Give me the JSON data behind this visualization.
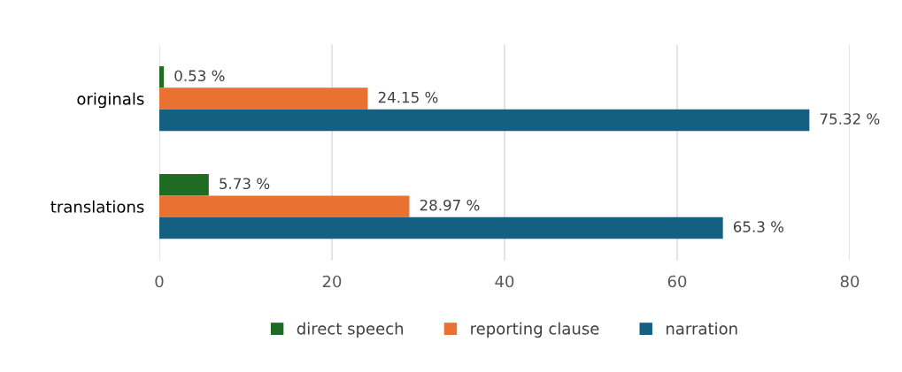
{
  "chart_data": {
    "type": "bar",
    "orientation": "horizontal",
    "categories": [
      "originals",
      "translations"
    ],
    "series": [
      {
        "name": "direct speech",
        "color": "#1e6b24",
        "values": [
          0.53,
          5.73
        ],
        "value_labels": [
          "0.53 %",
          "5.73 %"
        ]
      },
      {
        "name": "reporting clause",
        "color": "#e97132",
        "values": [
          24.15,
          28.97
        ],
        "value_labels": [
          "24.15 %",
          "28.97 %"
        ]
      },
      {
        "name": "narration",
        "color": "#156082",
        "values": [
          75.32,
          65.3
        ],
        "value_labels": [
          "75.32 %",
          "65.3 %"
        ]
      }
    ],
    "xlim": [
      0,
      80
    ],
    "xticks": [
      0,
      20,
      40,
      60,
      80
    ],
    "grid": "x",
    "legend": "bottom"
  }
}
